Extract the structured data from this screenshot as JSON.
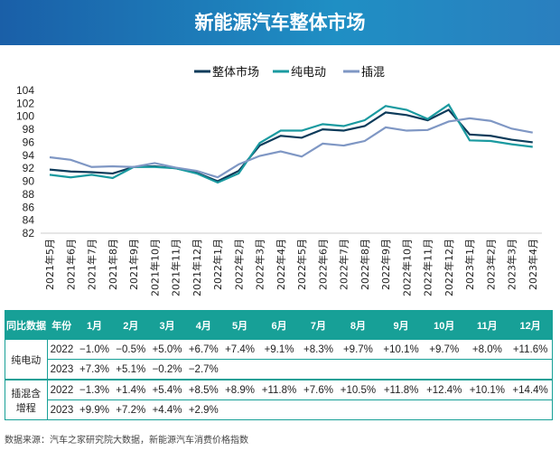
{
  "title": "新能源汽车整体市场",
  "chart_data": {
    "type": "line",
    "categories": [
      "2021年5月",
      "2021年6月",
      "2021年7月",
      "2021年8月",
      "2021年9月",
      "2021年10月",
      "2021年11月",
      "2021年12月",
      "2022年1月",
      "2022年2月",
      "2022年3月",
      "2022年4月",
      "2022年5月",
      "2022年6月",
      "2022年7月",
      "2022年8月",
      "2022年9月",
      "2022年10月",
      "2022年11月",
      "2022年12月",
      "2023年1月",
      "2023年2月",
      "2023年3月",
      "2023年4月"
    ],
    "ylim": [
      82,
      104
    ],
    "yticks": [
      82,
      84,
      86,
      88,
      90,
      92,
      94,
      96,
      98,
      100,
      102,
      104
    ],
    "legend": "top-right",
    "series": [
      {
        "name": "整体市场",
        "color": "#0d3b5a",
        "values": [
          91.8,
          91.5,
          91.4,
          91.2,
          92.2,
          92.3,
          92.0,
          91.3,
          90.0,
          91.6,
          95.5,
          97.0,
          96.7,
          98.0,
          97.8,
          98.5,
          100.6,
          100.2,
          99.4,
          101.0,
          97.2,
          97.0,
          96.4,
          96.0
        ]
      },
      {
        "name": "纯电动",
        "color": "#1a9aa0",
        "values": [
          91.0,
          90.6,
          91.0,
          90.5,
          92.2,
          92.2,
          92.0,
          91.2,
          89.8,
          91.2,
          95.9,
          97.8,
          97.8,
          98.8,
          98.5,
          99.4,
          101.6,
          101.0,
          99.6,
          101.8,
          96.3,
          96.2,
          95.7,
          95.3
        ]
      },
      {
        "name": "插混",
        "color": "#7f97c4",
        "values": [
          93.7,
          93.3,
          92.2,
          92.3,
          92.2,
          92.8,
          92.1,
          91.6,
          90.6,
          92.6,
          93.9,
          94.6,
          93.8,
          95.8,
          95.5,
          96.2,
          98.3,
          97.8,
          97.9,
          99.2,
          99.7,
          99.3,
          98.1,
          97.5
        ]
      }
    ]
  },
  "table": {
    "headers": [
      "同比数据",
      "年份",
      "1月",
      "2月",
      "3月",
      "4月",
      "5月",
      "6月",
      "7月",
      "8月",
      "9月",
      "10月",
      "11月",
      "12月"
    ],
    "groups": [
      {
        "label": "纯电动",
        "rows": [
          {
            "year": "2022",
            "values": [
              "−1.0%",
              "−0.5%",
              "+5.0%",
              "+6.7%",
              "+7.4%",
              "+9.1%",
              "+8.3%",
              "+9.7%",
              "+10.1%",
              "+9.7%",
              "+8.0%",
              "+11.6%"
            ]
          },
          {
            "year": "2023",
            "values": [
              "+7.3%",
              "+5.1%",
              "−0.2%",
              "−2.7%",
              "",
              "",
              "",
              "",
              "",
              "",
              "",
              ""
            ]
          }
        ]
      },
      {
        "label": "插混含增程",
        "rows": [
          {
            "year": "2022",
            "values": [
              "−1.3%",
              "+1.4%",
              "+5.4%",
              "+8.5%",
              "+8.9%",
              "+11.8%",
              "+7.6%",
              "+10.5%",
              "+11.8%",
              "+12.4%",
              "+10.1%",
              "+14.4%"
            ]
          },
          {
            "year": "2023",
            "values": [
              "+9.9%",
              "+7.2%",
              "+4.4%",
              "+2.9%",
              "",
              "",
              "",
              "",
              "",
              "",
              "",
              ""
            ]
          }
        ]
      }
    ]
  },
  "footnote": "数据来源：汽车之家研究院大数据，新能源汽车消费价格指数"
}
